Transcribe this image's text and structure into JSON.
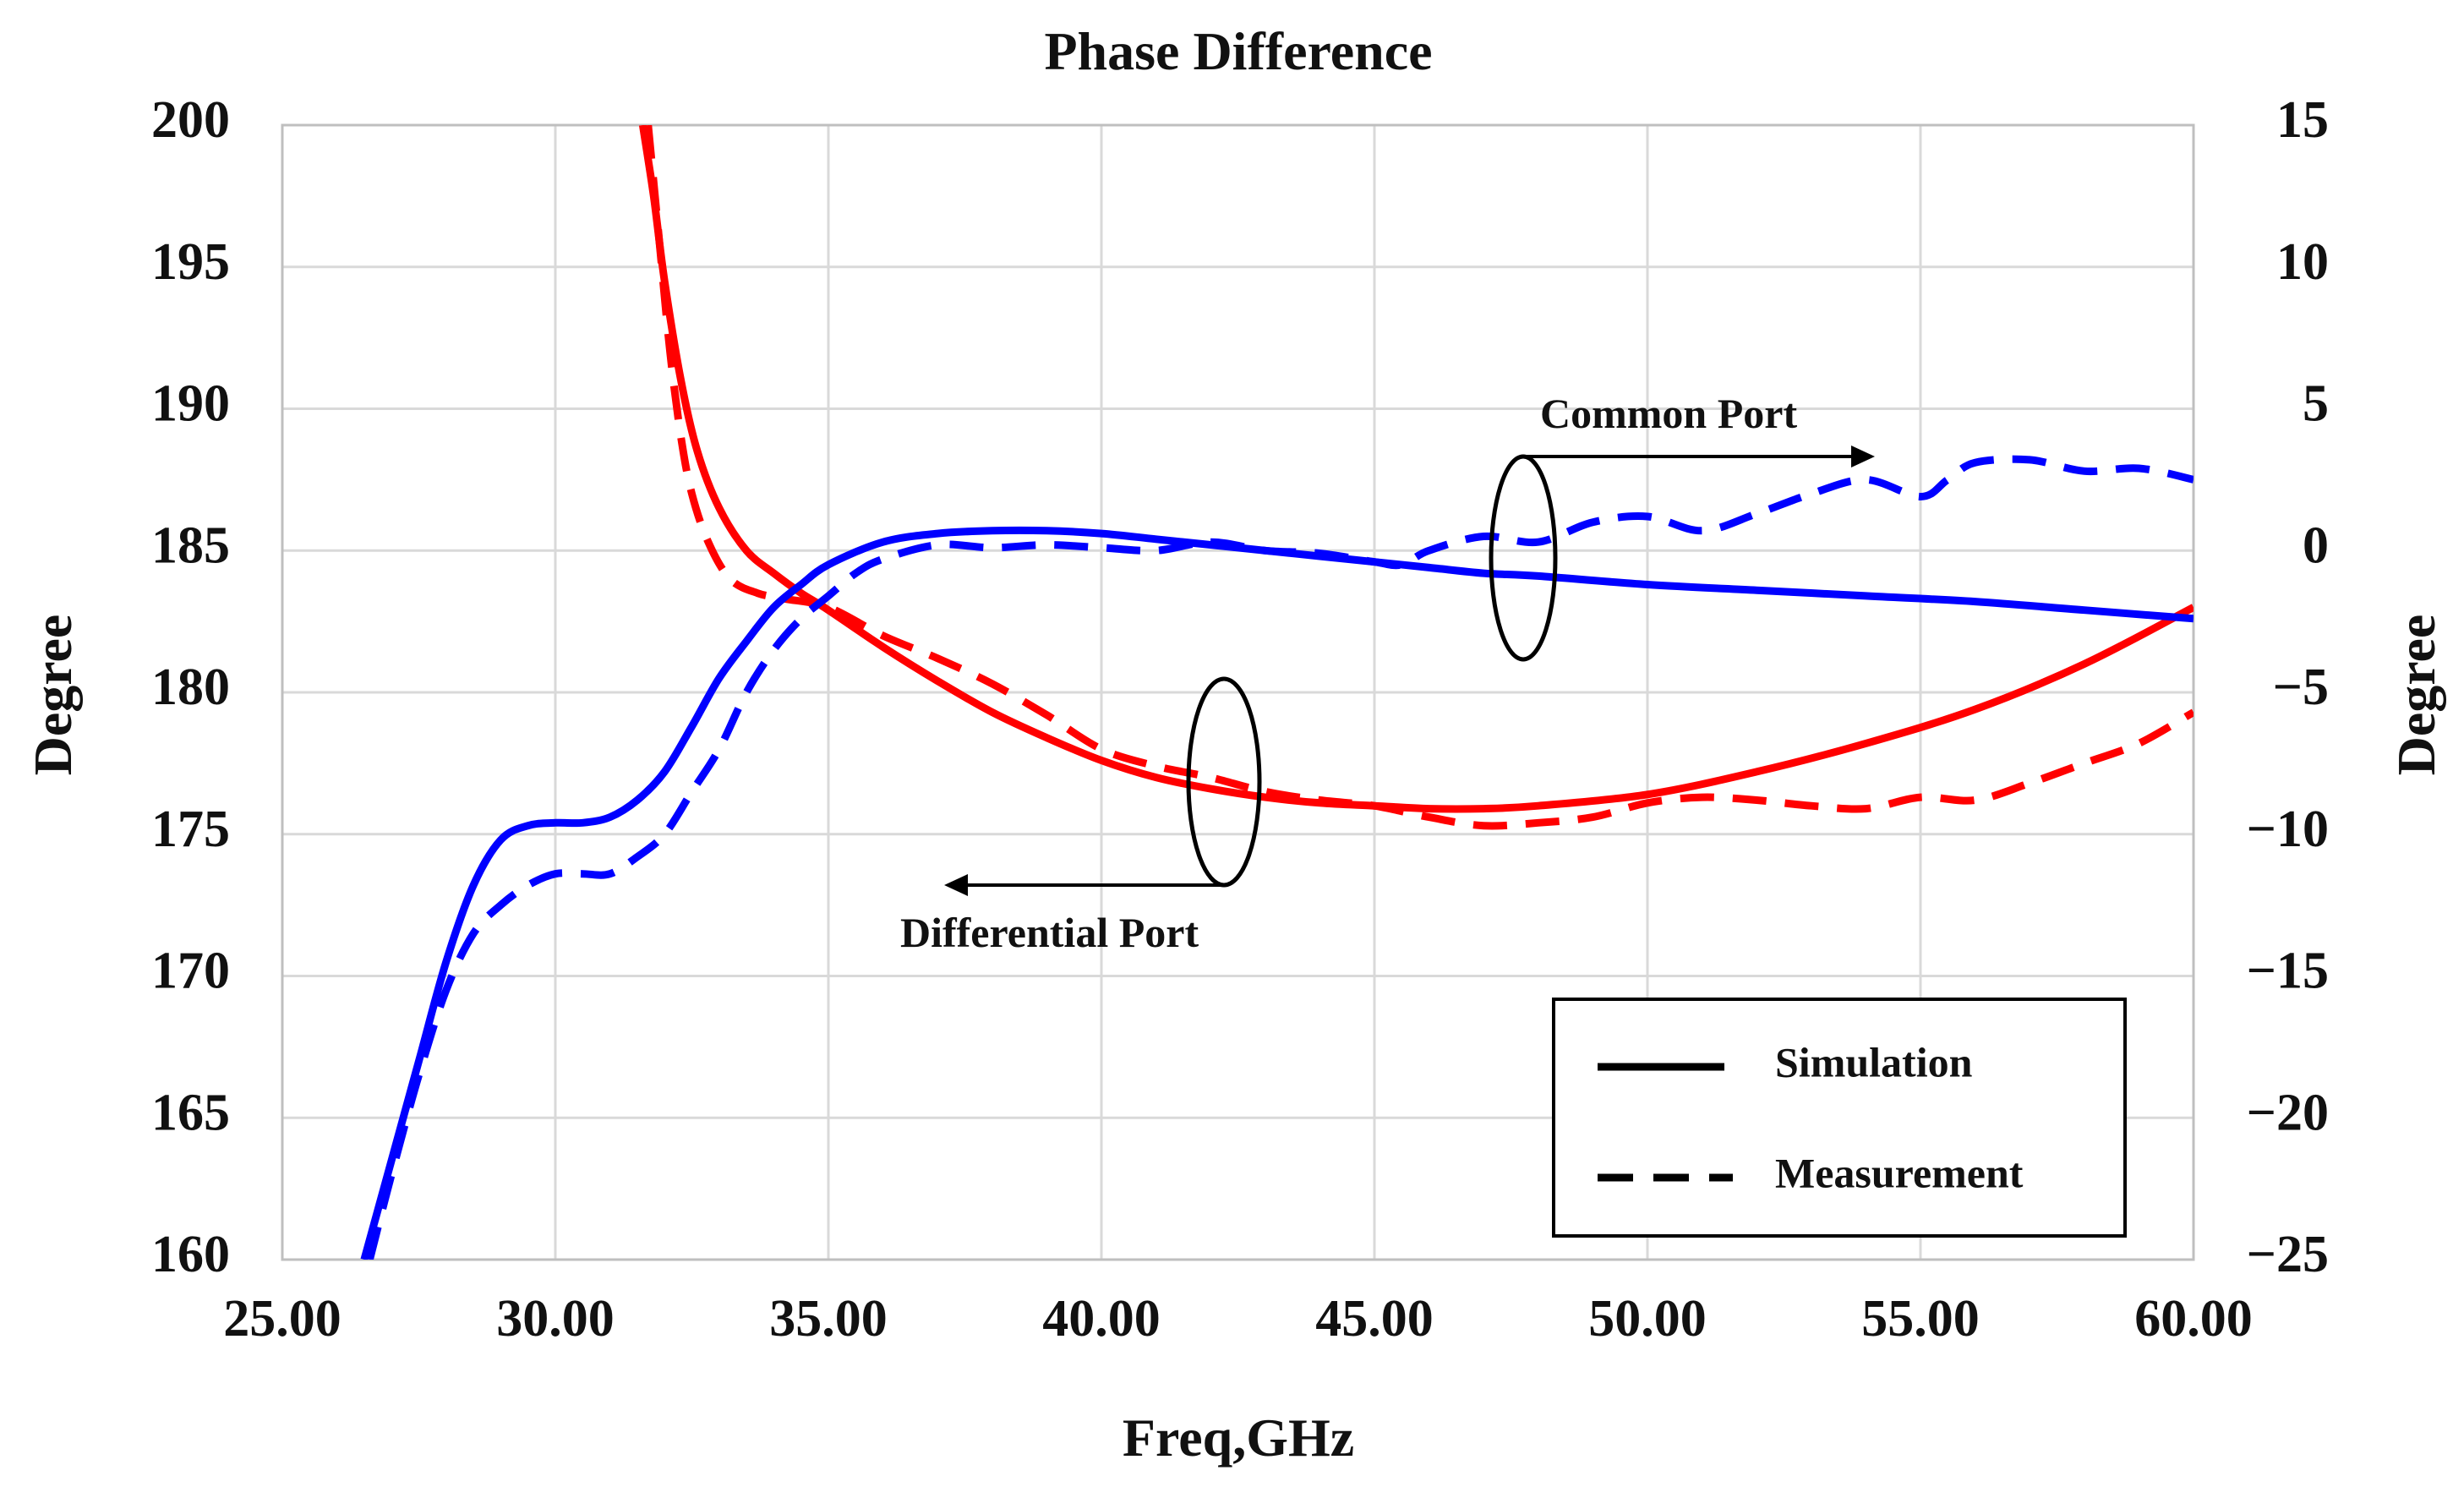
{
  "chart_data": {
    "type": "line",
    "title": "Phase Difference",
    "xlabel": "Freq,GHz",
    "ylabel": "Degree",
    "y2label": "Degree",
    "xlim": [
      25,
      60
    ],
    "ylim": [
      160,
      200
    ],
    "y2lim": [
      -25,
      15
    ],
    "grid": true,
    "x_ticks": [
      "25.00",
      "30.00",
      "35.00",
      "40.00",
      "45.00",
      "50.00",
      "55.00",
      "60.00"
    ],
    "y_ticks": [
      "160",
      "165",
      "170",
      "175",
      "180",
      "185",
      "190",
      "195",
      "200"
    ],
    "y2_ticks": [
      "−25",
      "−20",
      "−15",
      "−10",
      "−5",
      "0",
      "5",
      "10",
      "15"
    ],
    "series": [
      {
        "name": "Differential Port Simulation",
        "color": "#ff0000",
        "style": "solid",
        "axis": "left",
        "x": [
          31.6,
          31.8,
          32.0,
          32.3,
          32.6,
          33.0,
          33.5,
          34.0,
          34.5,
          35.0,
          36.0,
          37.0,
          38.0,
          39.0,
          40.0,
          41.0,
          42.0,
          43.0,
          44.0,
          45.0,
          46.0,
          47.0,
          48.0,
          50.0,
          52.0,
          54.0,
          56.0,
          58.0,
          60.0
        ],
        "y": [
          200.0,
          197.5,
          194.5,
          191.0,
          188.5,
          186.5,
          185.0,
          184.2,
          183.5,
          182.9,
          181.6,
          180.4,
          179.3,
          178.4,
          177.6,
          177.0,
          176.6,
          176.3,
          176.1,
          176.0,
          175.9,
          175.9,
          176.0,
          176.4,
          177.2,
          178.2,
          179.4,
          181.0,
          183.0
        ]
      },
      {
        "name": "Differential Port Measurement",
        "color": "#ff0000",
        "style": "dashed",
        "axis": "left",
        "x": [
          31.7,
          31.9,
          32.1,
          32.3,
          32.5,
          32.8,
          33.2,
          33.7,
          34.2,
          35.0,
          36.0,
          37.0,
          38.0,
          39.0,
          40.0,
          41.0,
          42.0,
          43.0,
          44.0,
          45.0,
          46.0,
          47.0,
          48.0,
          49.0,
          50.0,
          51.0,
          52.0,
          53.0,
          54.0,
          55.0,
          56.0,
          57.0,
          58.0,
          59.0,
          60.0
        ],
        "y": [
          200.0,
          196.0,
          192.0,
          189.0,
          187.0,
          185.3,
          184.0,
          183.5,
          183.3,
          183.0,
          182.0,
          181.2,
          180.3,
          179.2,
          178.0,
          177.4,
          177.0,
          176.5,
          176.2,
          176.0,
          175.6,
          175.3,
          175.4,
          175.6,
          176.1,
          176.3,
          176.2,
          176.0,
          175.9,
          176.3,
          176.2,
          176.8,
          177.5,
          178.2,
          179.3
        ]
      },
      {
        "name": "Common Port Simulation",
        "color": "#0000ff",
        "style": "solid",
        "axis": "right",
        "x": [
          26.5,
          27.0,
          27.5,
          28.0,
          28.5,
          29.0,
          29.5,
          30.0,
          30.5,
          31.0,
          31.5,
          32.0,
          32.5,
          33.0,
          33.5,
          34.0,
          34.5,
          35.0,
          36.0,
          37.0,
          38.0,
          39.0,
          40.0,
          41.0,
          42.0,
          43.0,
          44.0,
          45.0,
          46.0,
          47.0,
          48.0,
          50.0,
          52.0,
          54.0,
          56.0,
          58.0,
          60.0
        ],
        "y": [
          -25.0,
          -21.5,
          -18.0,
          -14.5,
          -11.8,
          -10.2,
          -9.7,
          -9.6,
          -9.6,
          -9.4,
          -8.8,
          -7.8,
          -6.2,
          -4.5,
          -3.2,
          -2.0,
          -1.2,
          -0.5,
          0.3,
          0.6,
          0.7,
          0.7,
          0.6,
          0.4,
          0.2,
          0.0,
          -0.2,
          -0.4,
          -0.6,
          -0.8,
          -0.9,
          -1.2,
          -1.4,
          -1.6,
          -1.8,
          -2.1,
          -2.4
        ]
      },
      {
        "name": "Common Port Measurement",
        "color": "#0000ff",
        "style": "dashed",
        "axis": "right",
        "x": [
          26.6,
          27.0,
          27.5,
          28.0,
          28.5,
          29.0,
          29.5,
          30.0,
          30.5,
          31.0,
          31.5,
          32.0,
          32.5,
          33.0,
          33.5,
          34.0,
          34.5,
          35.0,
          35.5,
          36.0,
          37.0,
          38.0,
          39.0,
          40.0,
          41.0,
          42.0,
          43.0,
          44.0,
          45.0,
          45.5,
          46.0,
          47.0,
          48.0,
          49.0,
          50.0,
          51.0,
          52.0,
          53.0,
          54.0,
          55.0,
          55.5,
          56.0,
          57.0,
          58.0,
          59.0,
          60.0
        ],
        "y": [
          -25.0,
          -22.0,
          -18.5,
          -15.5,
          -13.5,
          -12.5,
          -11.8,
          -11.4,
          -11.4,
          -11.4,
          -10.8,
          -10.0,
          -8.5,
          -7.0,
          -5.0,
          -3.5,
          -2.4,
          -1.6,
          -0.8,
          -0.3,
          0.2,
          0.1,
          0.2,
          0.1,
          0.0,
          0.3,
          0.0,
          -0.1,
          -0.4,
          -0.5,
          0.0,
          0.5,
          0.3,
          1.0,
          1.2,
          0.7,
          1.3,
          2.0,
          2.5,
          1.9,
          2.5,
          3.1,
          3.2,
          2.8,
          2.9,
          2.5
        ]
      }
    ],
    "annotations": [
      {
        "text": "Common Port",
        "points_to": "right axis"
      },
      {
        "text": "Differential Port",
        "points_to": "left axis"
      }
    ],
    "legend": {
      "position": "bottom-right",
      "entries": [
        {
          "label": "Simulation",
          "style": "solid"
        },
        {
          "label": "Measurement",
          "style": "dashed"
        }
      ]
    }
  }
}
